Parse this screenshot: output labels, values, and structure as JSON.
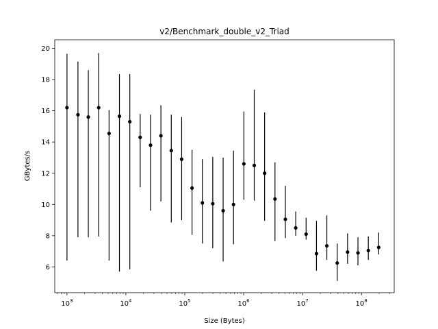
{
  "chart_data": {
    "type": "scatter",
    "title": "v2/Benchmark_double_v2_Triad",
    "xlabel": "Size (Bytes)",
    "ylabel": "GBytes/s",
    "x_scale": "log",
    "xlim": [
      620,
      360000000
    ],
    "ylim": [
      4.35,
      20.55
    ],
    "x_ticks": [
      {
        "value": 1000,
        "base": "10",
        "exp": "3"
      },
      {
        "value": 10000,
        "base": "10",
        "exp": "4"
      },
      {
        "value": 100000,
        "base": "10",
        "exp": "5"
      },
      {
        "value": 1000000,
        "base": "10",
        "exp": "6"
      },
      {
        "value": 10000000,
        "base": "10",
        "exp": "7"
      },
      {
        "value": 100000000,
        "base": "10",
        "exp": "8"
      }
    ],
    "y_ticks": [
      {
        "value": 6,
        "label": "6"
      },
      {
        "value": 8,
        "label": "8"
      },
      {
        "value": 10,
        "label": "10"
      },
      {
        "value": 12,
        "label": "12"
      },
      {
        "value": 14,
        "label": "14"
      },
      {
        "value": 16,
        "label": "16"
      },
      {
        "value": 18,
        "label": "18"
      },
      {
        "value": 20,
        "label": "20"
      }
    ],
    "grid": false,
    "legend": "none",
    "marker_color": "#000000",
    "series": [
      {
        "points": [
          {
            "x": 1000,
            "y": 16.2,
            "ylow": 6.4,
            "yhigh": 19.65
          },
          {
            "x": 1536,
            "y": 15.75,
            "ylow": 7.9,
            "yhigh": 19.15
          },
          {
            "x": 2304,
            "y": 15.6,
            "ylow": 7.9,
            "yhigh": 18.6
          },
          {
            "x": 3456,
            "y": 16.2,
            "ylow": 7.95,
            "yhigh": 19.7
          },
          {
            "x": 5184,
            "y": 14.55,
            "ylow": 6.4,
            "yhigh": 16.05
          },
          {
            "x": 7776,
            "y": 15.65,
            "ylow": 5.7,
            "yhigh": 18.35
          },
          {
            "x": 11664,
            "y": 15.3,
            "ylow": 5.85,
            "yhigh": 18.35
          },
          {
            "x": 17496,
            "y": 14.3,
            "ylow": 11.1,
            "yhigh": 15.8
          },
          {
            "x": 26244,
            "y": 13.8,
            "ylow": 9.6,
            "yhigh": 15.75
          },
          {
            "x": 39366,
            "y": 14.4,
            "ylow": 10.2,
            "yhigh": 16.35
          },
          {
            "x": 59049,
            "y": 13.45,
            "ylow": 8.85,
            "yhigh": 15.75
          },
          {
            "x": 88573,
            "y": 12.9,
            "ylow": 9.0,
            "yhigh": 15.6
          },
          {
            "x": 132860,
            "y": 11.05,
            "ylow": 8.05,
            "yhigh": 13.5
          },
          {
            "x": 199290,
            "y": 10.1,
            "ylow": 7.5,
            "yhigh": 12.9
          },
          {
            "x": 298935,
            "y": 10.05,
            "ylow": 7.2,
            "yhigh": 13.05
          },
          {
            "x": 448403,
            "y": 9.6,
            "ylow": 6.35,
            "yhigh": 13.0
          },
          {
            "x": 672605,
            "y": 10.0,
            "ylow": 7.45,
            "yhigh": 13.45
          },
          {
            "x": 1008908,
            "y": 12.6,
            "ylow": 10.3,
            "yhigh": 15.95
          },
          {
            "x": 1513362,
            "y": 12.5,
            "ylow": 10.25,
            "yhigh": 17.35
          },
          {
            "x": 2270043,
            "y": 12.0,
            "ylow": 8.95,
            "yhigh": 15.9
          },
          {
            "x": 3405064,
            "y": 10.35,
            "ylow": 7.65,
            "yhigh": 12.7
          },
          {
            "x": 5107596,
            "y": 9.05,
            "ylow": 7.85,
            "yhigh": 11.2
          },
          {
            "x": 7661394,
            "y": 8.5,
            "ylow": 8.0,
            "yhigh": 9.55
          },
          {
            "x": 11492091,
            "y": 8.1,
            "ylow": 7.75,
            "yhigh": 9.15
          },
          {
            "x": 17238136,
            "y": 6.85,
            "ylow": 5.75,
            "yhigh": 8.95
          },
          {
            "x": 25857205,
            "y": 7.35,
            "ylow": 6.45,
            "yhigh": 9.3
          },
          {
            "x": 38785807,
            "y": 6.25,
            "ylow": 5.1,
            "yhigh": 7.5
          },
          {
            "x": 58178711,
            "y": 6.95,
            "ylow": 6.2,
            "yhigh": 8.15
          },
          {
            "x": 87268066,
            "y": 6.9,
            "ylow": 6.1,
            "yhigh": 7.9
          },
          {
            "x": 130902099,
            "y": 7.05,
            "ylow": 6.45,
            "yhigh": 7.95
          },
          {
            "x": 196353149,
            "y": 7.25,
            "ylow": 6.8,
            "yhigh": 8.2
          }
        ]
      }
    ]
  }
}
